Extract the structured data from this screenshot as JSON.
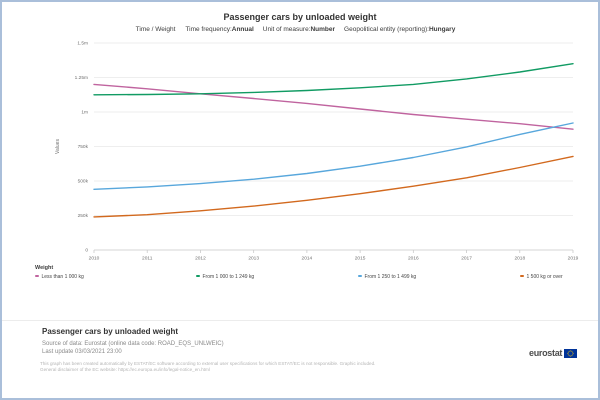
{
  "header": {
    "title": "Passenger cars by unloaded weight",
    "dimensions_label": "Time / Weight",
    "filters": [
      {
        "label": "Time frequency:",
        "value": "Annual"
      },
      {
        "label": "Unit of measure:",
        "value": "Number"
      },
      {
        "label": "Geopolitical entity (reporting):",
        "value": "Hungary"
      }
    ]
  },
  "chart_data": {
    "type": "line",
    "title": "Passenger cars by unloaded weight",
    "xlabel": "",
    "ylabel": "Values",
    "x": [
      2010,
      2011,
      2012,
      2013,
      2014,
      2015,
      2016,
      2017,
      2018,
      2019
    ],
    "ylim": [
      0,
      1500000
    ],
    "grid": true,
    "legend_title": "Weight",
    "legend_position": "bottom",
    "yticks": [
      {
        "value": 0,
        "label": "0"
      },
      {
        "value": 250000,
        "label": "250k"
      },
      {
        "value": 500000,
        "label": "500k"
      },
      {
        "value": 750000,
        "label": "750k"
      },
      {
        "value": 1000000,
        "label": "1m"
      },
      {
        "value": 1250000,
        "label": "1.25m"
      },
      {
        "value": 1500000,
        "label": "1.5m"
      }
    ],
    "series": [
      {
        "name": "Less than 1 000 kg",
        "color": "#c0649f",
        "values": [
          1200000,
          1168000,
          1132000,
          1098000,
          1062000,
          1022000,
          982000,
          948000,
          915000,
          875000
        ]
      },
      {
        "name": "From 1 000 to 1 249 kg",
        "color": "#119b63",
        "values": [
          1125000,
          1127000,
          1132000,
          1142000,
          1156000,
          1175000,
          1200000,
          1240000,
          1290000,
          1350000
        ]
      },
      {
        "name": "From 1 250 to 1 499 kg",
        "color": "#58a7dc",
        "values": [
          440000,
          457000,
          481000,
          513000,
          554000,
          607000,
          670000,
          747000,
          838000,
          920000
        ]
      },
      {
        "name": "1 500 kg or over",
        "color": "#d2691e",
        "values": [
          240000,
          256000,
          284000,
          318000,
          360000,
          408000,
          462000,
          523000,
          598000,
          678000
        ]
      }
    ]
  },
  "footer": {
    "title": "Passenger cars by unloaded weight",
    "source": "Source of data: Eurostat (online data code: ROAD_EQS_UNLWEIC)",
    "last_update": "Last update 03/03/2021 23:00",
    "disclaimer_line1": "This graph has been created automatically by ESTAT/EC software according to external user specifications for which ESTAT/EC is not responsible. Graphic included.",
    "disclaimer_line2": "General disclaimer of the EC website: https://ec.europa.eu/info/legal-notice_en.html"
  },
  "logo": {
    "text": "eurostat"
  }
}
